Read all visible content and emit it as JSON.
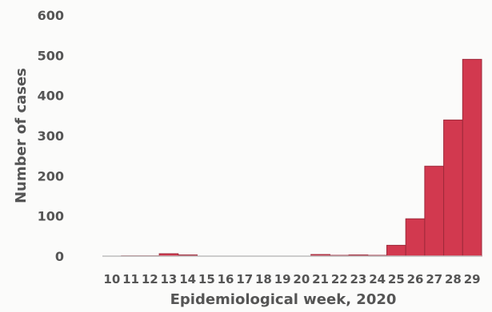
{
  "chart_data": {
    "type": "bar",
    "title": "",
    "xlabel": "Epidemiological week, 2020",
    "ylabel": "Number of cases",
    "categories": [
      "10",
      "11",
      "12",
      "13",
      "14",
      "15",
      "16",
      "17",
      "18",
      "19",
      "20",
      "21",
      "22",
      "23",
      "24",
      "25",
      "26",
      "27",
      "28",
      "29"
    ],
    "values": [
      0,
      1,
      1,
      6,
      3,
      0,
      0,
      0,
      0,
      0,
      0,
      4,
      2,
      3,
      2,
      27,
      93,
      224,
      339,
      490
    ],
    "ylim": [
      0,
      600
    ],
    "yticks": [
      "0",
      "100",
      "200",
      "300",
      "400",
      "500",
      "600"
    ],
    "grid": false,
    "legend": "none",
    "bar_color": "#d2394f",
    "bar_edge_color": "#9e2a3b"
  }
}
